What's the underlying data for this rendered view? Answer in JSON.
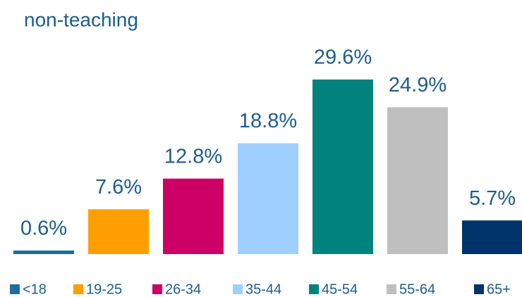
{
  "chart_data": {
    "type": "bar",
    "title": "non-teaching",
    "categories": [
      "<18",
      "19-25",
      "26-34",
      "35-44",
      "45-54",
      "55-64",
      "65+"
    ],
    "values": [
      0.6,
      7.6,
      12.8,
      18.8,
      29.6,
      24.9,
      5.7
    ],
    "value_labels": [
      "0.6%",
      "7.6%",
      "12.8%",
      "18.8%",
      "29.6%",
      "24.9%",
      "5.7%"
    ],
    "colors": [
      "#1f6d9e",
      "#ff9e00",
      "#cc0066",
      "#9fcfff",
      "#00827f",
      "#bfbfbf",
      "#00336a"
    ]
  }
}
